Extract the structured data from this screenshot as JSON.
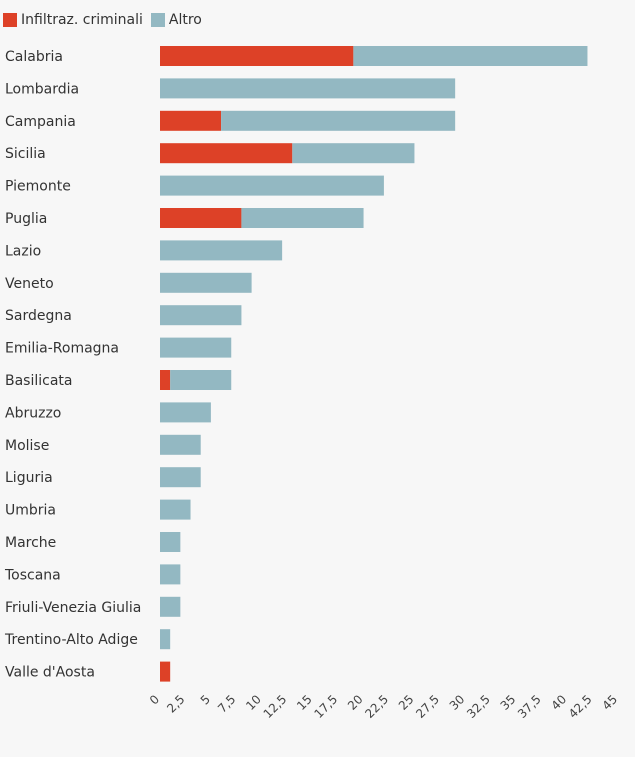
{
  "chart_data": {
    "type": "bar",
    "orientation": "horizontal",
    "stacked": true,
    "categories": [
      "Calabria",
      "Lombardia",
      "Campania",
      "Sicilia",
      "Piemonte",
      "Puglia",
      "Lazio",
      "Veneto",
      "Sardegna",
      "Emilia-Romagna",
      "Basilicata",
      "Abruzzo",
      "Molise",
      "Liguria",
      "Umbria",
      "Marche",
      "Toscana",
      "Friuli-Venezia Giulia",
      "Trentino-Alto Adige",
      "Valle d'Aosta"
    ],
    "series": [
      {
        "name": "Infiltraz. criminali",
        "color": "#dd4127",
        "values": [
          19,
          0,
          6,
          13,
          0,
          8,
          0,
          0,
          0,
          0,
          1,
          0,
          0,
          0,
          0,
          0,
          0,
          0,
          0,
          1
        ]
      },
      {
        "name": "Altro",
        "color": "#93b8c2",
        "values": [
          23,
          29,
          23,
          12,
          22,
          12,
          12,
          9,
          8,
          7,
          6,
          5,
          4,
          4,
          3,
          2,
          2,
          2,
          1,
          0
        ]
      }
    ],
    "xlim": [
      0,
      45
    ],
    "x_ticks": [
      "0",
      "2,5",
      "5",
      "7,5",
      "10",
      "12,5",
      "15",
      "17,5",
      "20",
      "22,5",
      "25",
      "27,5",
      "30",
      "32,5",
      "35",
      "37,5",
      "40",
      "42,5",
      "45"
    ],
    "legend_position": "top-left",
    "grid": false
  }
}
